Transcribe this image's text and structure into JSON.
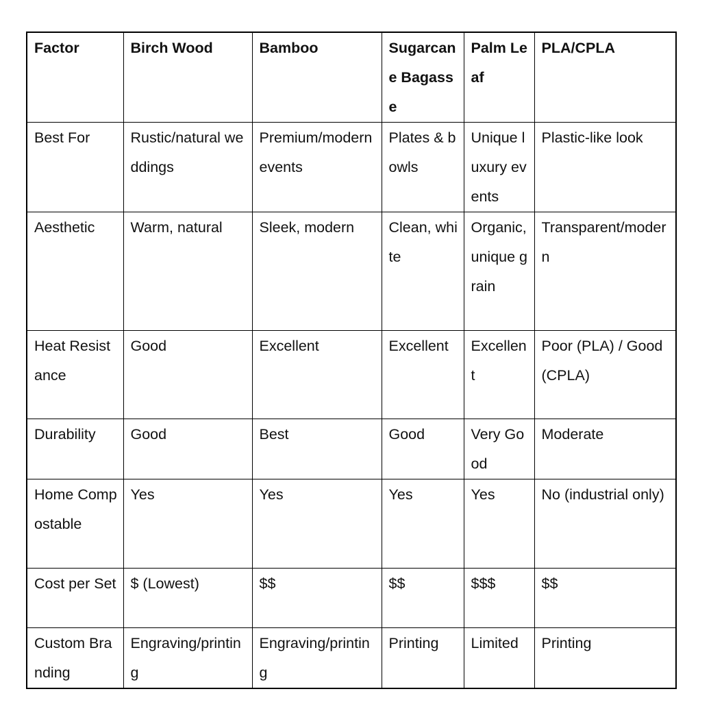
{
  "headers": [
    "Factor",
    "Birch Wood",
    "Bamboo",
    "Sugarcane Bagasse",
    "Palm Leaf",
    "PLA/CPLA"
  ],
  "rows": [
    [
      "Best For",
      "Rustic/natural weddings",
      "Premium/modern events",
      "Plates & bowls",
      "Unique luxury events",
      "Plastic-like look"
    ],
    [
      "Aesthetic",
      "Warm, natural",
      "Sleek, modern",
      "Clean, white",
      "Organic, unique grain",
      "Transparent/modern"
    ],
    [
      "Heat Resistance",
      "Good",
      "Excellent",
      "Excellent",
      "Excellent",
      "Poor (PLA) / Good (CPLA)"
    ],
    [
      "Durability",
      "Good",
      "Best",
      "Good",
      "Very Good",
      "Moderate"
    ],
    [
      "Home Compostable",
      "Yes",
      "Yes",
      "Yes",
      "Yes",
      "No (industrial only)"
    ],
    [
      "Cost per Set",
      "$ (Lowest)",
      "$$",
      "$$",
      "$$$",
      "$$"
    ],
    [
      "Custom Branding",
      "Engraving/printing",
      "Engraving/printing",
      "Printing",
      "Limited",
      "Printing"
    ]
  ]
}
